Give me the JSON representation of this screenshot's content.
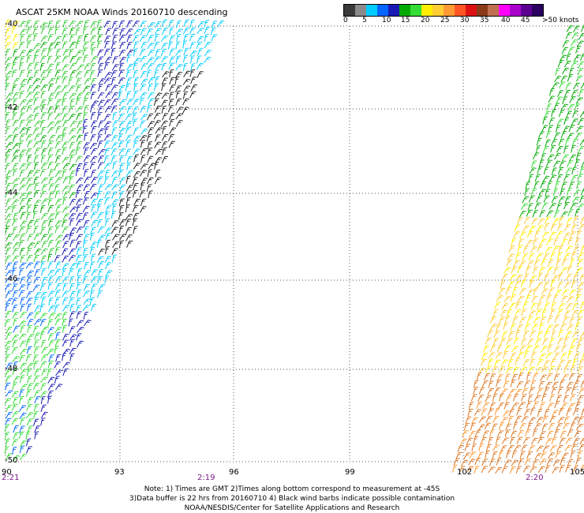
{
  "header": {
    "title": "ASCAT 25KM NOAA Winds 20160710 descending"
  },
  "legend": {
    "colors": [
      "#3a3a3a",
      "#8a8a8a",
      "#00ccff",
      "#0066ff",
      "#1a1ab4",
      "#00aa00",
      "#33dd33",
      "#ffee00",
      "#ffcc33",
      "#ff9933",
      "#ff5522",
      "#dd1111",
      "#8b3a1a",
      "#c07050",
      "#ff00ff",
      "#aa00cc",
      "#5a0090",
      "#2a0060"
    ],
    "labels": [
      "0",
      "5",
      "10",
      "15",
      "20",
      "25",
      "30",
      "35",
      "40",
      "45",
      ">50 knots"
    ]
  },
  "map": {
    "lat_labels": [
      "-40",
      "-42",
      "-44",
      "-46",
      "-48",
      "-50"
    ],
    "lon_labels": [
      "90",
      "93",
      "96",
      "99",
      "102",
      "105"
    ],
    "time_labels": [
      "2:21",
      "2:19",
      "2:20"
    ]
  },
  "notes": {
    "line1": "Note: 1) Times are GMT 2)Times along bottom correspond to measurement at -45S",
    "line2": "3)Data buffer is 22 hrs from 20160710 4) Black wind barbs indicate possible contamination",
    "line3": "NOAA/NESDIS/Center for Satellite Applications and Research"
  }
}
